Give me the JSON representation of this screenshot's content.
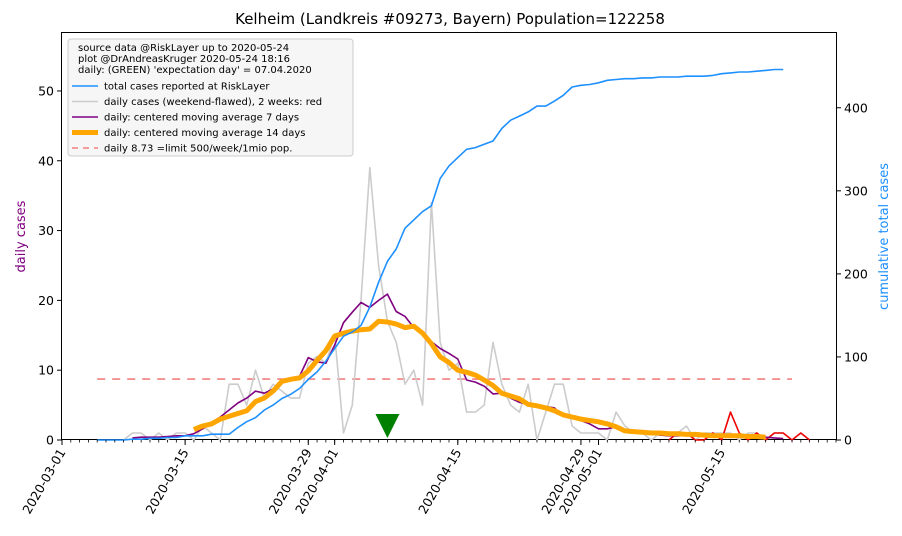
{
  "colors": {
    "total": "#1e90ff",
    "daily": "#cccccc",
    "daily_recent": "#ee0000",
    "ma7": "#800080",
    "ma14": "#ffa500",
    "limit": "#f08080",
    "expectation": "#008000",
    "left_label": "#800080",
    "right_label": "#1e90ff"
  },
  "chart_data": {
    "type": "line",
    "title": "Kelheim (Landkreis #09273, Bayern) Population=122258",
    "ylabel_left": "daily cases",
    "ylabel_right": "cumulative total cases",
    "x_tick_labels": [
      "2020-03-01",
      "2020-03-15",
      "2020-03-29",
      "2020-04-01",
      "2020-04-15",
      "2020-04-29",
      "2020-05-01",
      "2020-05-15"
    ],
    "x_ticks_day": [
      0,
      14,
      28,
      31,
      45,
      59,
      61,
      75
    ],
    "xlim_day": [
      0,
      88
    ],
    "ylim_left": [
      0,
      58.3
    ],
    "ylim_right": [
      0,
      490
    ],
    "yticks_left": [
      0,
      10,
      20,
      30,
      40,
      50
    ],
    "yticks_right": [
      0,
      100,
      200,
      300,
      400
    ],
    "legend": {
      "info": [
        "source data @RiskLayer up to 2020-05-24",
        "plot @DrAndreasKruger 2020-05-24 18:16",
        "daily: (GREEN) 'expectation day' = 07.04.2020"
      ],
      "entries": [
        "total cases reported at RiskLayer",
        "daily cases (weekend-flawed), 2 weeks: red",
        "daily: centered moving average 7 days",
        "daily: centered moving average 14 days",
        "daily 8.73 =limit 500/week/1mio pop."
      ]
    },
    "limit_value": 8.73,
    "limit_day_range": [
      4,
      83
    ],
    "expectation_day": 37,
    "series": [
      {
        "name": "total cases reported at RiskLayer",
        "axis": "right",
        "points": [
          [
            4,
            0
          ],
          [
            5,
            0
          ],
          [
            6,
            0
          ],
          [
            7,
            0
          ],
          [
            8,
            1
          ],
          [
            9,
            1
          ],
          [
            10,
            2
          ],
          [
            11,
            2
          ],
          [
            12,
            3
          ],
          [
            13,
            3
          ],
          [
            14,
            5
          ],
          [
            15,
            5
          ],
          [
            16,
            5
          ],
          [
            17,
            7
          ],
          [
            18,
            7
          ],
          [
            19,
            7
          ],
          [
            20,
            15
          ],
          [
            21,
            22
          ],
          [
            22,
            27
          ],
          [
            23,
            36
          ],
          [
            24,
            42
          ],
          [
            25,
            50
          ],
          [
            26,
            55
          ],
          [
            27,
            62
          ],
          [
            28,
            73
          ],
          [
            29,
            82
          ],
          [
            30,
            95
          ],
          [
            31,
            110
          ],
          [
            32,
            125
          ],
          [
            33,
            130
          ],
          [
            34,
            138
          ],
          [
            35,
            160
          ],
          [
            36,
            190
          ],
          [
            37,
            215
          ],
          [
            38,
            230
          ],
          [
            39,
            255
          ],
          [
            40,
            265
          ],
          [
            41,
            275
          ],
          [
            42,
            282
          ],
          [
            43,
            315
          ],
          [
            44,
            330
          ],
          [
            45,
            340
          ],
          [
            46,
            350
          ],
          [
            47,
            352
          ],
          [
            48,
            356
          ],
          [
            49,
            360
          ],
          [
            50,
            375
          ],
          [
            51,
            385
          ],
          [
            52,
            390
          ],
          [
            53,
            395
          ],
          [
            54,
            402
          ],
          [
            55,
            402
          ],
          [
            56,
            408
          ],
          [
            57,
            415
          ],
          [
            58,
            425
          ],
          [
            59,
            427
          ],
          [
            60,
            428
          ],
          [
            61,
            430
          ],
          [
            62,
            433
          ],
          [
            63,
            434
          ],
          [
            64,
            435
          ],
          [
            65,
            435
          ],
          [
            66,
            436
          ],
          [
            67,
            436
          ],
          [
            68,
            437
          ],
          [
            69,
            437
          ],
          [
            70,
            437
          ],
          [
            71,
            438
          ],
          [
            72,
            438
          ],
          [
            73,
            438
          ],
          [
            74,
            439
          ],
          [
            75,
            441
          ],
          [
            76,
            442
          ],
          [
            77,
            443
          ],
          [
            78,
            443
          ],
          [
            79,
            444
          ],
          [
            80,
            445
          ],
          [
            81,
            446
          ],
          [
            82,
            446
          ]
        ]
      },
      {
        "name": "daily cases (weekend-flawed), 2 weeks: red",
        "axis": "left",
        "points": [
          [
            7,
            0
          ],
          [
            8,
            1
          ],
          [
            9,
            1
          ],
          [
            10,
            0
          ],
          [
            11,
            1
          ],
          [
            12,
            0
          ],
          [
            13,
            1
          ],
          [
            14,
            1
          ],
          [
            15,
            0
          ],
          [
            16,
            2
          ],
          [
            17,
            1
          ],
          [
            18,
            0
          ],
          [
            19,
            8
          ],
          [
            20,
            8
          ],
          [
            21,
            5
          ],
          [
            22,
            10
          ],
          [
            23,
            6
          ],
          [
            24,
            8
          ],
          [
            25,
            7
          ],
          [
            26,
            6
          ],
          [
            27,
            6
          ],
          [
            28,
            11
          ],
          [
            29,
            12
          ],
          [
            30,
            11
          ],
          [
            31,
            15
          ],
          [
            32,
            1
          ],
          [
            33,
            5
          ],
          [
            34,
            20
          ],
          [
            35,
            39
          ],
          [
            36,
            25
          ],
          [
            37,
            17
          ],
          [
            38,
            14
          ],
          [
            39,
            8
          ],
          [
            40,
            10
          ],
          [
            41,
            5
          ],
          [
            42,
            34
          ],
          [
            43,
            14
          ],
          [
            44,
            10
          ],
          [
            45,
            11
          ],
          [
            46,
            4
          ],
          [
            47,
            4
          ],
          [
            48,
            5
          ],
          [
            49,
            14
          ],
          [
            50,
            8
          ],
          [
            51,
            5
          ],
          [
            52,
            4
          ],
          [
            53,
            8
          ],
          [
            54,
            0
          ],
          [
            55,
            4
          ],
          [
            56,
            8
          ],
          [
            57,
            8
          ],
          [
            58,
            2
          ],
          [
            59,
            1
          ],
          [
            60,
            1
          ],
          [
            61,
            1
          ],
          [
            62,
            0
          ],
          [
            63,
            4
          ],
          [
            64,
            2
          ],
          [
            65,
            1
          ],
          [
            66,
            1
          ],
          [
            67,
            0
          ],
          [
            68,
            1
          ],
          [
            69,
            1
          ],
          [
            70,
            1
          ],
          [
            71,
            2
          ],
          [
            72,
            0
          ],
          [
            73,
            1
          ],
          [
            74,
            1
          ],
          [
            75,
            1
          ],
          [
            76,
            1
          ],
          [
            77,
            0
          ],
          [
            78,
            1
          ],
          [
            79,
            1
          ],
          [
            80,
            0
          ],
          [
            81,
            1
          ],
          [
            82,
            1
          ]
        ]
      },
      {
        "name": "daily cases (last 2 weeks)",
        "axis": "left",
        "points": [
          [
            69,
            0
          ],
          [
            70,
            1
          ],
          [
            71,
            1
          ],
          [
            72,
            0
          ],
          [
            73,
            0
          ],
          [
            74,
            1
          ],
          [
            75,
            0
          ],
          [
            76,
            4
          ],
          [
            77,
            1
          ],
          [
            78,
            0
          ],
          [
            79,
            1
          ],
          [
            80,
            0
          ],
          [
            81,
            1
          ],
          [
            82,
            1
          ],
          [
            83,
            0
          ],
          [
            84,
            1
          ],
          [
            85,
            0
          ]
        ]
      },
      {
        "name": "daily: centered moving average 7 days",
        "axis": "left",
        "points": [
          [
            8,
            0.3
          ],
          [
            9,
            0.4
          ],
          [
            10,
            0.4
          ],
          [
            11,
            0.4
          ],
          [
            12,
            0.5
          ],
          [
            13,
            0.6
          ],
          [
            14,
            0.6
          ],
          [
            15,
            0.9
          ],
          [
            16,
            1.6
          ],
          [
            17,
            2.5
          ],
          [
            18,
            3.3
          ],
          [
            19,
            4.3
          ],
          [
            20,
            5.3
          ],
          [
            21,
            6.0
          ],
          [
            22,
            7.0
          ],
          [
            23,
            6.7
          ],
          [
            24,
            7.3
          ],
          [
            25,
            8.3
          ],
          [
            26,
            8.7
          ],
          [
            27,
            9.1
          ],
          [
            28,
            11.8
          ],
          [
            29,
            11.2
          ],
          [
            30,
            11.0
          ],
          [
            31,
            13.6
          ],
          [
            32,
            16.8
          ],
          [
            33,
            18.3
          ],
          [
            34,
            19.7
          ],
          [
            35,
            19.0
          ],
          [
            36,
            20.0
          ],
          [
            37,
            20.9
          ],
          [
            38,
            18.4
          ],
          [
            39,
            17.7
          ],
          [
            40,
            16.1
          ],
          [
            41,
            15.1
          ],
          [
            42,
            14.1
          ],
          [
            43,
            13.1
          ],
          [
            44,
            12.4
          ],
          [
            45,
            11.6
          ],
          [
            46,
            8.6
          ],
          [
            47,
            8.3
          ],
          [
            48,
            7.7
          ],
          [
            49,
            6.6
          ],
          [
            50,
            6.7
          ],
          [
            51,
            6.0
          ],
          [
            52,
            5.4
          ],
          [
            53,
            5.1
          ],
          [
            54,
            4.9
          ],
          [
            55,
            4.8
          ],
          [
            56,
            4.6
          ],
          [
            57,
            3.4
          ],
          [
            58,
            3.3
          ],
          [
            59,
            2.8
          ],
          [
            60,
            2.3
          ],
          [
            61,
            1.6
          ],
          [
            62,
            1.6
          ],
          [
            63,
            1.9
          ],
          [
            64,
            1.3
          ],
          [
            65,
            1.1
          ],
          [
            66,
            1.0
          ],
          [
            67,
            0.9
          ],
          [
            68,
            0.7
          ],
          [
            69,
            0.6
          ],
          [
            70,
            0.6
          ],
          [
            71,
            0.7
          ],
          [
            72,
            0.6
          ],
          [
            73,
            0.6
          ],
          [
            74,
            0.7
          ],
          [
            75,
            0.7
          ],
          [
            76,
            0.7
          ],
          [
            77,
            0.7
          ],
          [
            78,
            0.6
          ],
          [
            79,
            0.6
          ],
          [
            80,
            0.4
          ],
          [
            81,
            0.3
          ],
          [
            82,
            0.2
          ]
        ]
      },
      {
        "name": "daily: centered moving average 14 days",
        "axis": "left",
        "points": [
          [
            15,
            1.5
          ],
          [
            16,
            2.0
          ],
          [
            17,
            2.3
          ],
          [
            18,
            3.0
          ],
          [
            19,
            3.4
          ],
          [
            20,
            3.8
          ],
          [
            21,
            4.2
          ],
          [
            22,
            5.5
          ],
          [
            23,
            6.0
          ],
          [
            24,
            7.0
          ],
          [
            25,
            8.4
          ],
          [
            26,
            8.7
          ],
          [
            27,
            8.9
          ],
          [
            28,
            9.9
          ],
          [
            29,
            11.4
          ],
          [
            30,
            12.8
          ],
          [
            31,
            14.9
          ],
          [
            32,
            15.3
          ],
          [
            33,
            15.6
          ],
          [
            34,
            15.8
          ],
          [
            35,
            15.9
          ],
          [
            36,
            17.0
          ],
          [
            37,
            16.9
          ],
          [
            38,
            16.6
          ],
          [
            39,
            16.1
          ],
          [
            40,
            16.3
          ],
          [
            41,
            15.3
          ],
          [
            42,
            13.8
          ],
          [
            43,
            11.9
          ],
          [
            44,
            11.1
          ],
          [
            45,
            10.0
          ],
          [
            46,
            9.7
          ],
          [
            47,
            9.3
          ],
          [
            48,
            8.6
          ],
          [
            49,
            7.8
          ],
          [
            50,
            6.7
          ],
          [
            51,
            6.3
          ],
          [
            52,
            5.9
          ],
          [
            53,
            5.1
          ],
          [
            54,
            4.9
          ],
          [
            55,
            4.6
          ],
          [
            56,
            4.2
          ],
          [
            57,
            3.6
          ],
          [
            58,
            3.3
          ],
          [
            59,
            3.0
          ],
          [
            60,
            2.8
          ],
          [
            61,
            2.6
          ],
          [
            62,
            2.3
          ],
          [
            63,
            1.9
          ],
          [
            64,
            1.3
          ],
          [
            65,
            1.2
          ],
          [
            66,
            1.1
          ],
          [
            67,
            1.0
          ],
          [
            68,
            1.0
          ],
          [
            69,
            0.9
          ],
          [
            70,
            0.9
          ],
          [
            71,
            0.8
          ],
          [
            72,
            0.8
          ],
          [
            73,
            0.7
          ],
          [
            74,
            0.6
          ],
          [
            75,
            0.6
          ],
          [
            76,
            0.6
          ],
          [
            77,
            0.6
          ],
          [
            78,
            0.5
          ],
          [
            79,
            0.5
          ],
          [
            80,
            0.4
          ]
        ]
      }
    ]
  }
}
